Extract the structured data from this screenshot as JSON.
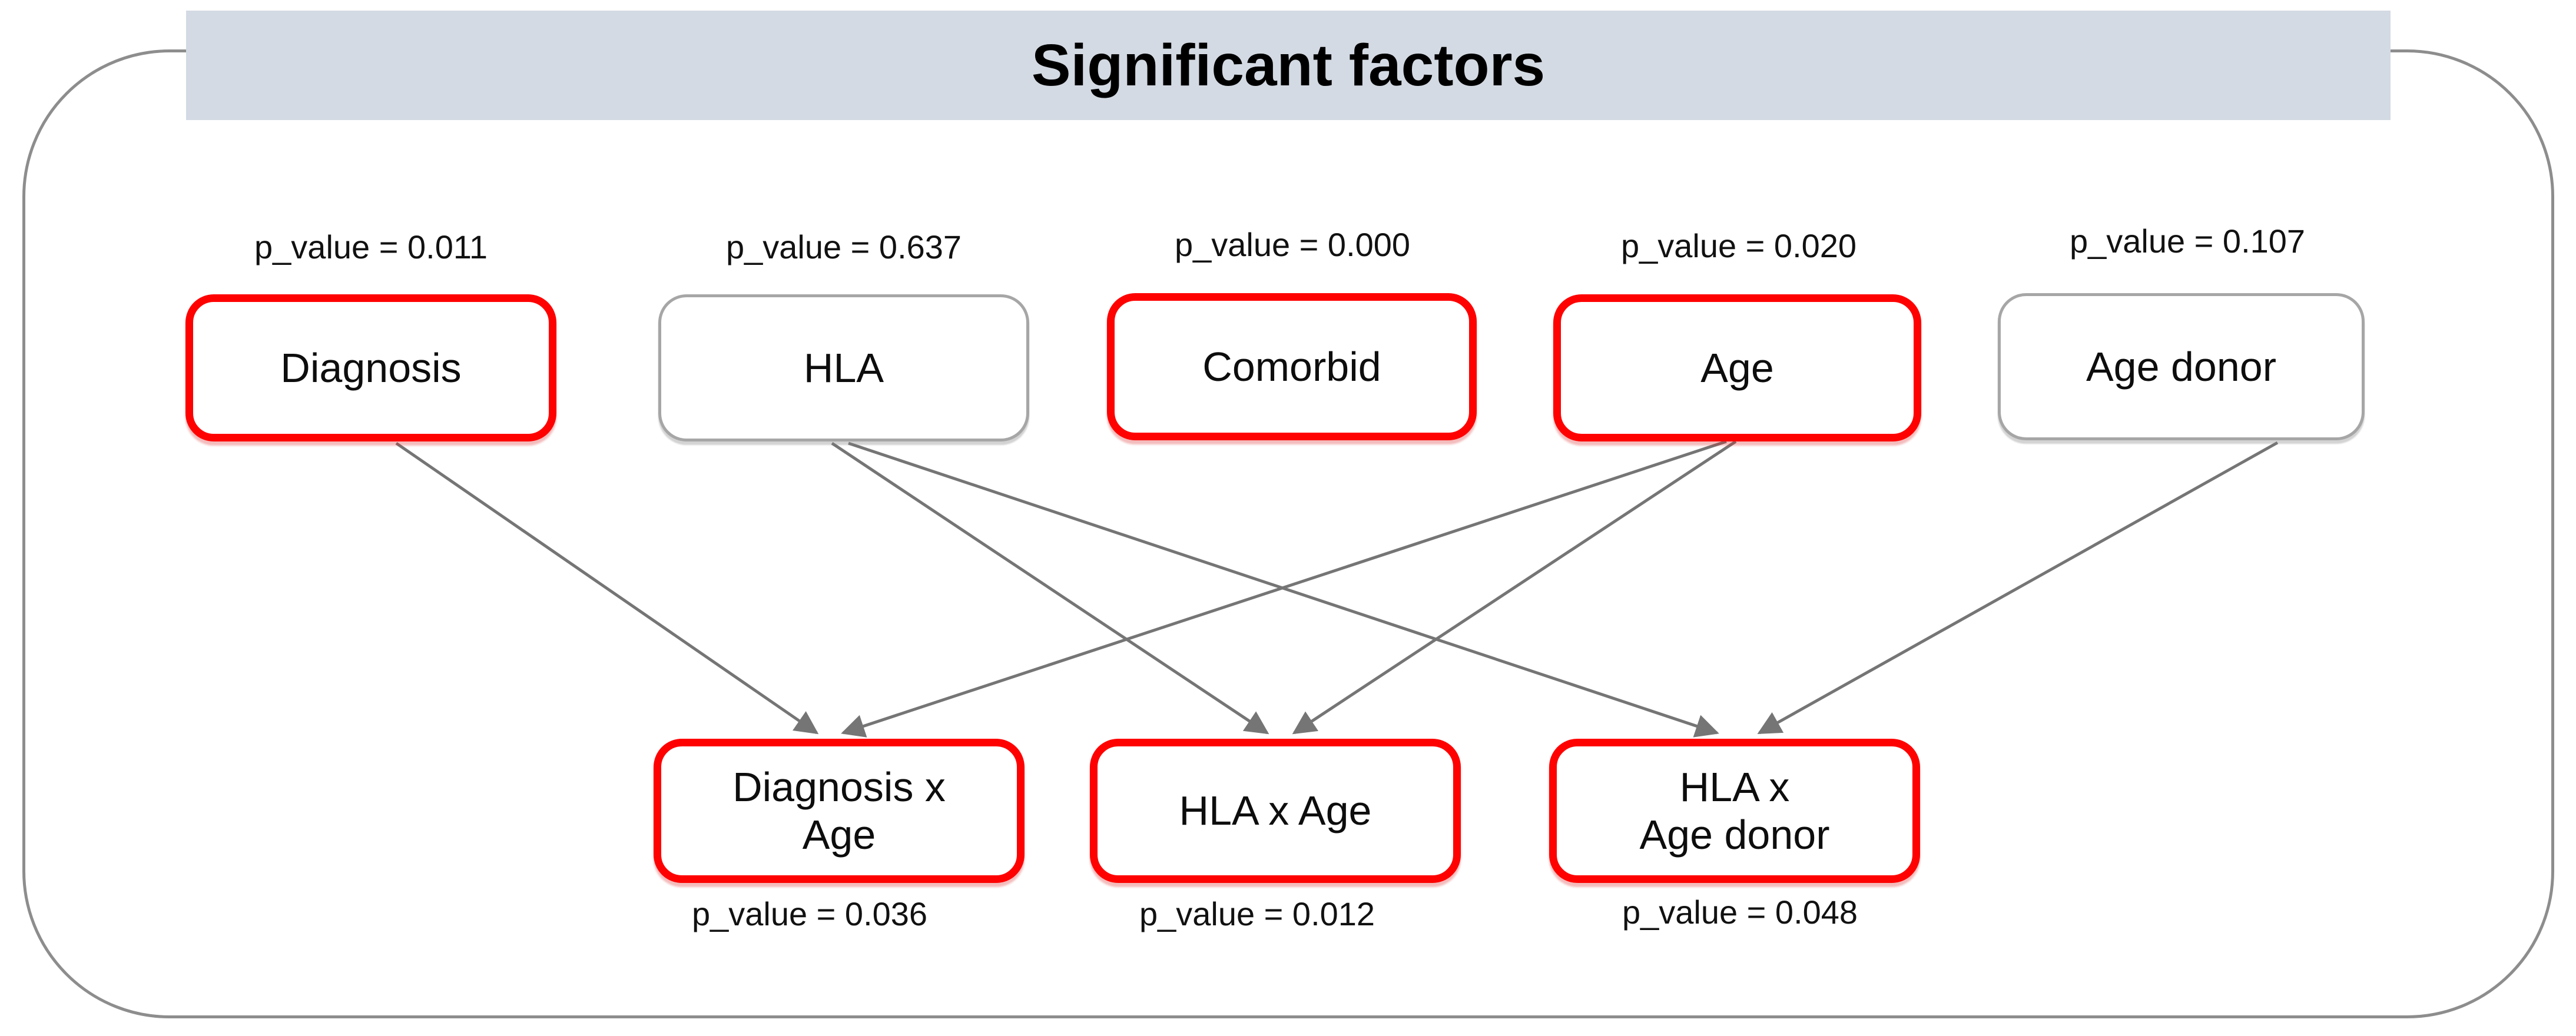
{
  "diagram": {
    "title": "Significant factors",
    "factors": [
      {
        "id": "diagnosis",
        "label": "Diagnosis",
        "p_value_label": "p_value = 0.011",
        "significant": true
      },
      {
        "id": "hla",
        "label": "HLA",
        "p_value_label": "p_value = 0.637",
        "significant": false
      },
      {
        "id": "comorbid",
        "label": "Comorbid",
        "p_value_label": "p_value = 0.000",
        "significant": true
      },
      {
        "id": "age",
        "label": "Age",
        "p_value_label": "p_value = 0.020",
        "significant": true
      },
      {
        "id": "age_donor",
        "label": "Age donor",
        "p_value_label": "p_value = 0.107",
        "significant": false
      }
    ],
    "interactions": [
      {
        "id": "diagnosis_x_age",
        "label": "Diagnosis x\nAge",
        "p_value_label": "p_value = 0.036",
        "significant": true
      },
      {
        "id": "hla_x_age",
        "label": "HLA x Age",
        "p_value_label": "p_value = 0.012",
        "significant": true
      },
      {
        "id": "hla_x_age_donor",
        "label": "HLA x\nAge donor",
        "p_value_label": "p_value = 0.048",
        "significant": true
      }
    ],
    "edges": [
      {
        "from": "diagnosis",
        "to": "diagnosis_x_age"
      },
      {
        "from": "age",
        "to": "diagnosis_x_age"
      },
      {
        "from": "hla",
        "to": "hla_x_age"
      },
      {
        "from": "age",
        "to": "hla_x_age"
      },
      {
        "from": "hla",
        "to": "hla_x_age_donor"
      },
      {
        "from": "age_donor",
        "to": "hla_x_age_donor"
      }
    ],
    "colors": {
      "significant_border": "#fe0101",
      "normal_border": "#a6a6a6",
      "arrow": "#757575",
      "banner_bg": "#d3dae3",
      "frame_border": "#8d8d8d"
    }
  }
}
